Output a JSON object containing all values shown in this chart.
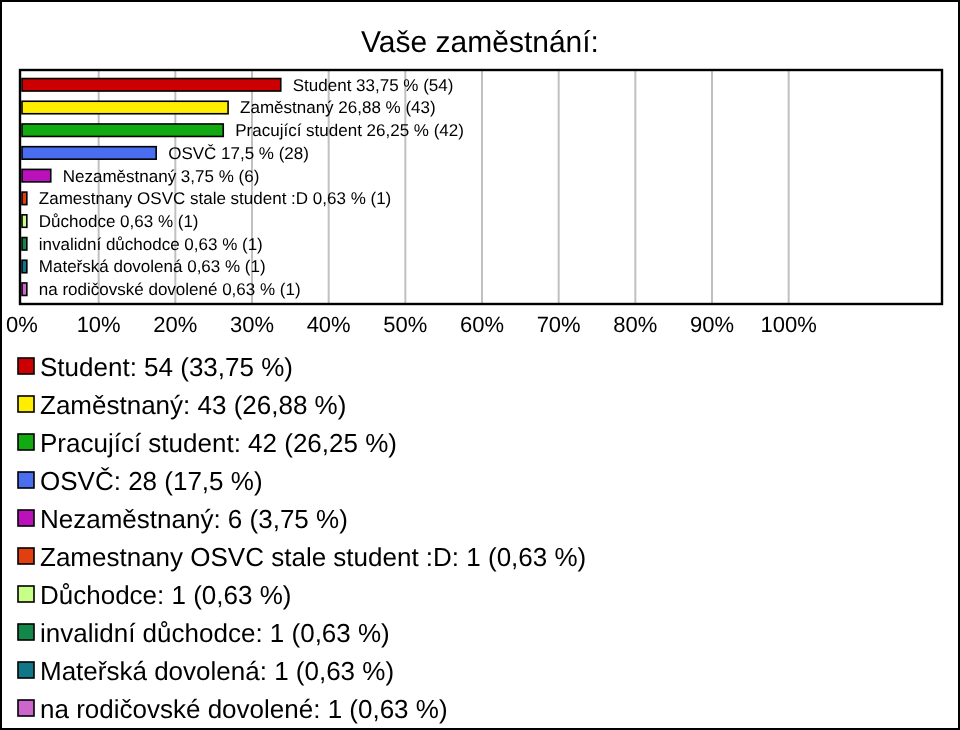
{
  "chart_data": {
    "type": "bar",
    "orientation": "horizontal",
    "title": "Vaše zaměstnání:",
    "categories": [
      null,
      null,
      null,
      null,
      null,
      null,
      null,
      null,
      null,
      null
    ],
    "xlim": [
      0,
      120
    ],
    "xticks": [
      {
        "value": 0,
        "label": "0%"
      },
      {
        "value": 10,
        "label": "10%"
      },
      {
        "value": 20,
        "label": "20%"
      },
      {
        "value": 30,
        "label": "30%"
      },
      {
        "value": 40,
        "label": "40%"
      },
      {
        "value": 50,
        "label": "50%"
      },
      {
        "value": 60,
        "label": "60%"
      },
      {
        "value": 70,
        "label": "70%"
      },
      {
        "value": 80,
        "label": "80%"
      },
      {
        "value": 90,
        "label": "90%"
      },
      {
        "value": 100,
        "label": "100%"
      }
    ],
    "grid": "x",
    "legend": "bottom",
    "series": [
      {
        "name": "Student: 54 (33,75 %)",
        "color": "#cc0000",
        "values": [
          33.75,
          null,
          null,
          null,
          null,
          null,
          null,
          null,
          null,
          null
        ],
        "value_labels": [
          "Student 33,75 % (54)",
          null,
          null,
          null,
          null,
          null,
          null,
          null,
          null,
          null
        ]
      },
      {
        "name": "Zaměstnaný: 43 (26,88 %)",
        "color": "#ffee00",
        "values": [
          null,
          26.88,
          null,
          null,
          null,
          null,
          null,
          null,
          null,
          null
        ],
        "value_labels": [
          null,
          "Zaměstnaný 26,88 % (43)",
          null,
          null,
          null,
          null,
          null,
          null,
          null,
          null
        ]
      },
      {
        "name": "Pracující student: 42 (26,25 %)",
        "color": "#11aa11",
        "values": [
          null,
          null,
          26.25,
          null,
          null,
          null,
          null,
          null,
          null,
          null
        ],
        "value_labels": [
          null,
          null,
          "Pracující student 26,25 % (42)",
          null,
          null,
          null,
          null,
          null,
          null,
          null
        ]
      },
      {
        "name": "OSVČ: 28 (17,5 %)",
        "color": "#4a6ef0",
        "values": [
          null,
          null,
          null,
          17.5,
          null,
          null,
          null,
          null,
          null,
          null
        ],
        "value_labels": [
          null,
          null,
          null,
          "OSVČ 17,5 % (28)",
          null,
          null,
          null,
          null,
          null,
          null
        ]
      },
      {
        "name": "Nezaměstnaný: 6 (3,75 %)",
        "color": "#bb11bb",
        "values": [
          null,
          null,
          null,
          null,
          3.75,
          null,
          null,
          null,
          null,
          null
        ],
        "value_labels": [
          null,
          null,
          null,
          null,
          "Nezaměstnaný 3,75 % (6)",
          null,
          null,
          null,
          null,
          null
        ]
      },
      {
        "name": "Zamestnany OSVC stale student :D: 1 (0,63 %)",
        "color": "#e04010",
        "values": [
          null,
          null,
          null,
          null,
          null,
          0.63,
          null,
          null,
          null,
          null
        ],
        "value_labels": [
          null,
          null,
          null,
          null,
          null,
          "Zamestnany OSVC stale student :D 0,63 % (1)",
          null,
          null,
          null,
          null
        ]
      },
      {
        "name": "Důchodce: 1 (0,63 %)",
        "color": "#c8ff88",
        "values": [
          null,
          null,
          null,
          null,
          null,
          null,
          0.63,
          null,
          null,
          null
        ],
        "value_labels": [
          null,
          null,
          null,
          null,
          null,
          null,
          "Důchodce 0,63 % (1)",
          null,
          null,
          null
        ]
      },
      {
        "name": "invalidní důchodce: 1 (0,63 %)",
        "color": "#11884a",
        "values": [
          null,
          null,
          null,
          null,
          null,
          null,
          null,
          0.63,
          null,
          null
        ],
        "value_labels": [
          null,
          null,
          null,
          null,
          null,
          null,
          null,
          "invalidní důchodce 0,63 % (1)",
          null,
          null
        ]
      },
      {
        "name": "Mateřská dovolená: 1 (0,63 %)",
        "color": "#117788",
        "values": [
          null,
          null,
          null,
          null,
          null,
          null,
          null,
          null,
          0.63,
          null
        ],
        "value_labels": [
          null,
          null,
          null,
          null,
          null,
          null,
          null,
          null,
          "Mateřská dovolená 0,63 % (1)",
          null
        ]
      },
      {
        "name": "na rodičovské dovolené: 1 (0,63 %)",
        "color": "#cc66cc",
        "values": [
          null,
          null,
          null,
          null,
          null,
          null,
          null,
          null,
          null,
          0.63
        ],
        "value_labels": [
          null,
          null,
          null,
          null,
          null,
          null,
          null,
          null,
          null,
          "na rodičovské dovolené 0,63 % (1)"
        ]
      }
    ]
  }
}
